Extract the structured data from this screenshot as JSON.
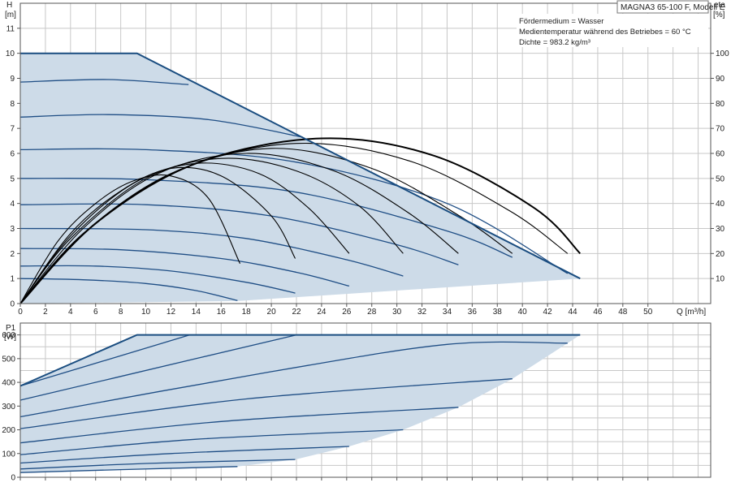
{
  "model_label": "MAGNA3 65-100 F, Modell E",
  "info_lines": [
    "Fördermedium = Wasser",
    "Medientemperatur während des Betriebes = 60 °C",
    "Dichte = 983.2 kg/m³"
  ],
  "colors": {
    "fill": "#cddbe8",
    "curve": "#1f4e85",
    "envelope": "#1a4d80",
    "eta": "#000000",
    "grid": "#c8c8c8",
    "axis": "#555555"
  },
  "chart_data": [
    {
      "type": "line",
      "xlabel": "Q [m³/h]",
      "ylabel": "H",
      "ylabel_unit": "[m]",
      "y2label": "eta",
      "y2label_unit": "[%]",
      "xlim": [
        0,
        55
      ],
      "ylim": [
        0,
        12
      ],
      "y2lim": [
        0,
        120
      ],
      "xticks": [
        "0",
        "2",
        "4",
        "6",
        "8",
        "10",
        "12",
        "14",
        "16",
        "18",
        "20",
        "22",
        "24",
        "26",
        "28",
        "30",
        "32",
        "34",
        "36",
        "38",
        "40",
        "42",
        "44",
        "46",
        "48",
        "50"
      ],
      "yticks": [
        "0",
        "1",
        "2",
        "3",
        "4",
        "5",
        "6",
        "7",
        "8",
        "9",
        "10",
        "11"
      ],
      "y2ticks": [
        "10",
        "20",
        "30",
        "40",
        "50",
        "60",
        "70",
        "80",
        "90",
        "100"
      ],
      "grid": true,
      "operating_area": [
        [
          0,
          0
        ],
        [
          0,
          10
        ],
        [
          9.3,
          10
        ],
        [
          44.6,
          1.0
        ],
        [
          17.3,
          0.1
        ]
      ],
      "envelope": [
        [
          0,
          10
        ],
        [
          9.3,
          10
        ],
        [
          44.6,
          1.0
        ]
      ],
      "head_curves": [
        [
          [
            0,
            1.0
          ],
          [
            5,
            0.95
          ],
          [
            10,
            0.8
          ],
          [
            14,
            0.52
          ],
          [
            17.3,
            0.12
          ]
        ],
        [
          [
            0,
            1.5
          ],
          [
            6,
            1.5
          ],
          [
            12,
            1.3
          ],
          [
            18,
            0.85
          ],
          [
            21.9,
            0.42
          ]
        ],
        [
          [
            0,
            2.2
          ],
          [
            8,
            2.15
          ],
          [
            16,
            1.8
          ],
          [
            22,
            1.25
          ],
          [
            26.2,
            0.7
          ]
        ],
        [
          [
            0,
            3.0
          ],
          [
            10,
            2.95
          ],
          [
            18,
            2.6
          ],
          [
            26,
            1.75
          ],
          [
            30.5,
            1.1
          ]
        ],
        [
          [
            0,
            3.95
          ],
          [
            10,
            3.95
          ],
          [
            20,
            3.5
          ],
          [
            30,
            2.35
          ],
          [
            34.9,
            1.55
          ]
        ],
        [
          [
            0,
            5.0
          ],
          [
            10,
            4.95
          ],
          [
            22,
            4.45
          ],
          [
            34,
            2.9
          ],
          [
            39.2,
            1.85
          ]
        ],
        [
          [
            0,
            6.15
          ],
          [
            10,
            6.15
          ],
          [
            22,
            5.65
          ],
          [
            34,
            4.0
          ],
          [
            43.6,
            1.2
          ]
        ],
        [
          [
            0,
            7.45
          ],
          [
            7,
            7.55
          ],
          [
            15,
            7.35
          ],
          [
            22.5,
            6.65
          ]
        ],
        [
          [
            0,
            8.85
          ],
          [
            7,
            8.95
          ],
          [
            13.4,
            8.75
          ]
        ]
      ],
      "eta_curves": [
        [
          [
            0,
            0
          ],
          [
            3,
            25
          ],
          [
            6,
            40
          ],
          [
            9,
            49
          ],
          [
            12,
            51
          ],
          [
            15,
            42
          ],
          [
            17.5,
            16
          ]
        ],
        [
          [
            0,
            0
          ],
          [
            4,
            28
          ],
          [
            8,
            45
          ],
          [
            12,
            54
          ],
          [
            16,
            51
          ],
          [
            20,
            35
          ],
          [
            21.9,
            18
          ]
        ],
        [
          [
            0,
            0
          ],
          [
            4,
            27
          ],
          [
            9,
            48
          ],
          [
            14,
            56
          ],
          [
            19,
            52
          ],
          [
            23,
            38
          ],
          [
            26.2,
            20
          ]
        ],
        [
          [
            0,
            0
          ],
          [
            4,
            26
          ],
          [
            10,
            50
          ],
          [
            16,
            58
          ],
          [
            22,
            53
          ],
          [
            27,
            39
          ],
          [
            30.5,
            20
          ]
        ],
        [
          [
            0,
            0
          ],
          [
            5,
            30
          ],
          [
            11,
            52
          ],
          [
            18,
            60
          ],
          [
            25,
            53
          ],
          [
            31,
            36
          ],
          [
            34.9,
            20
          ]
        ],
        [
          [
            0,
            0
          ],
          [
            5,
            28
          ],
          [
            12,
            52
          ],
          [
            20,
            62
          ],
          [
            28,
            54
          ],
          [
            35,
            35
          ],
          [
            39.2,
            20
          ]
        ],
        [
          [
            0,
            0
          ],
          [
            6,
            32
          ],
          [
            13,
            54
          ],
          [
            22,
            64
          ],
          [
            31,
            57
          ],
          [
            39,
            37
          ],
          [
            43.6,
            20
          ]
        ],
        [
          [
            0,
            0
          ],
          [
            6,
            32
          ],
          [
            14,
            56
          ],
          [
            24,
            66
          ],
          [
            33,
            59
          ],
          [
            41,
            38
          ],
          [
            44.6,
            20
          ]
        ]
      ]
    },
    {
      "type": "line",
      "ylabel": "P1",
      "ylabel_unit": "[W]",
      "xlim": [
        0,
        55
      ],
      "ylim": [
        0,
        650
      ],
      "yticks": [
        "0",
        "100",
        "200",
        "300",
        "400",
        "500",
        "600"
      ],
      "grid": true,
      "operating_area": [
        [
          0,
          385
        ],
        [
          9.3,
          600
        ],
        [
          44.6,
          600
        ],
        [
          43.6,
          565
        ],
        [
          39.2,
          415
        ],
        [
          34.9,
          295
        ],
        [
          30.5,
          200
        ],
        [
          26.2,
          130
        ],
        [
          21.9,
          75
        ],
        [
          17.3,
          45
        ],
        [
          0,
          20
        ]
      ],
      "envelope": [
        [
          0,
          385
        ],
        [
          9.3,
          600
        ],
        [
          44.6,
          600
        ]
      ],
      "power_curves": [
        [
          [
            0,
            20
          ],
          [
            8,
            32
          ],
          [
            17.3,
            45
          ]
        ],
        [
          [
            0,
            35
          ],
          [
            10,
            58
          ],
          [
            21.9,
            75
          ]
        ],
        [
          [
            0,
            60
          ],
          [
            12,
            100
          ],
          [
            26.2,
            130
          ]
        ],
        [
          [
            0,
            95
          ],
          [
            14,
            160
          ],
          [
            30.5,
            200
          ]
        ],
        [
          [
            0,
            145
          ],
          [
            16,
            235
          ],
          [
            34.9,
            295
          ]
        ],
        [
          [
            0,
            205
          ],
          [
            18,
            330
          ],
          [
            39.2,
            415
          ]
        ],
        [
          [
            0,
            255
          ],
          [
            20,
            445
          ],
          [
            34,
            560
          ],
          [
            43.6,
            565
          ]
        ],
        [
          [
            0,
            325
          ],
          [
            14,
            500
          ],
          [
            22,
            600
          ]
        ],
        [
          [
            0,
            385
          ],
          [
            13.5,
            600
          ]
        ]
      ]
    }
  ]
}
